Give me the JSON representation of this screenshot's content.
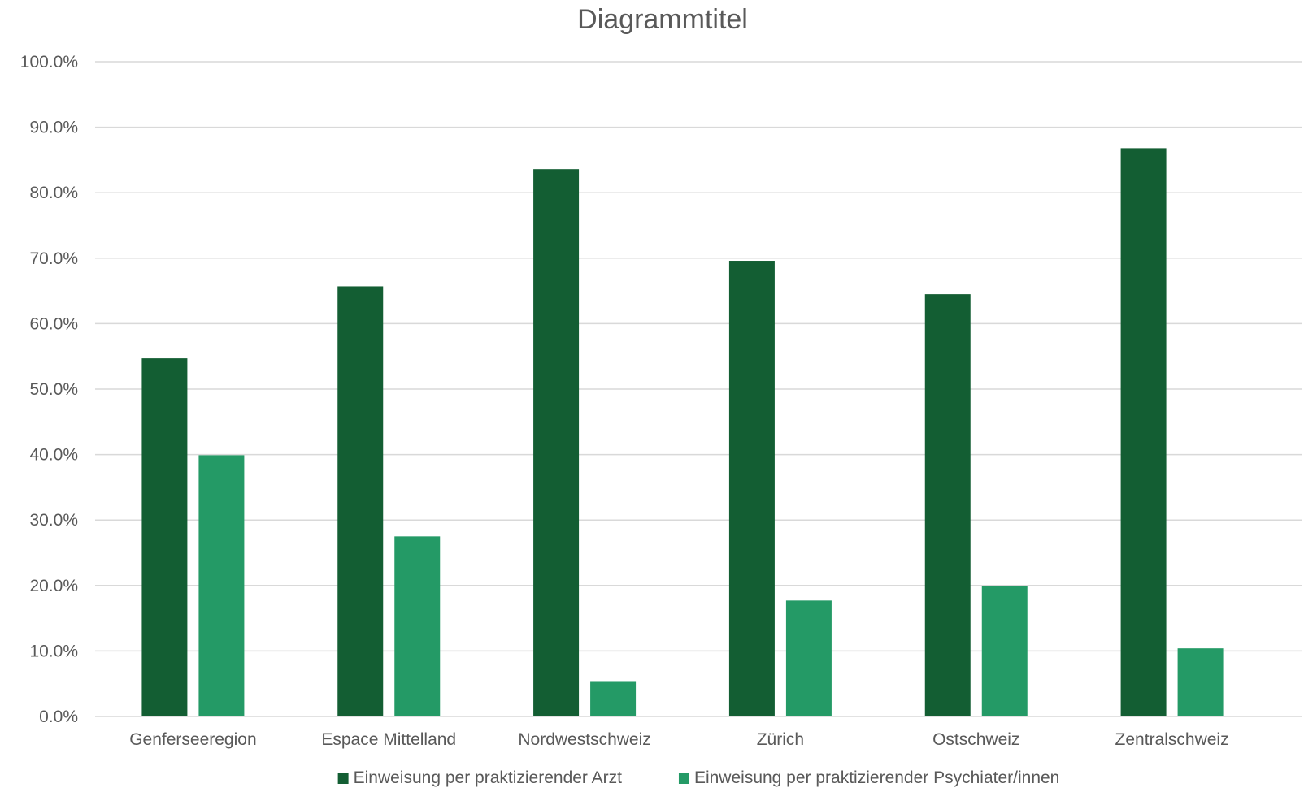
{
  "chart_data": {
    "type": "bar",
    "title": "Diagrammtitel",
    "xlabel": "",
    "ylabel": "",
    "ylim": [
      0,
      100
    ],
    "y_ticks": [
      "0.0%",
      "10.0%",
      "20.0%",
      "30.0%",
      "40.0%",
      "50.0%",
      "60.0%",
      "70.0%",
      "80.0%",
      "90.0%",
      "100.0%"
    ],
    "grid": true,
    "legend_position": "bottom",
    "categories": [
      "Genferseeregion",
      "Espace Mittelland",
      "Nordwestschweiz",
      "Zürich",
      "Ostschweiz",
      "Zentralschweiz"
    ],
    "series": [
      {
        "name": "Einweisung per praktizierender Arzt",
        "color": "#135e33",
        "values": [
          54.7,
          65.7,
          83.6,
          69.6,
          64.5,
          86.8
        ]
      },
      {
        "name": "Einweisung per praktizierender Psychiater/innen",
        "color": "#249a66",
        "values": [
          39.9,
          27.5,
          5.4,
          17.7,
          19.9,
          10.4
        ]
      }
    ]
  }
}
